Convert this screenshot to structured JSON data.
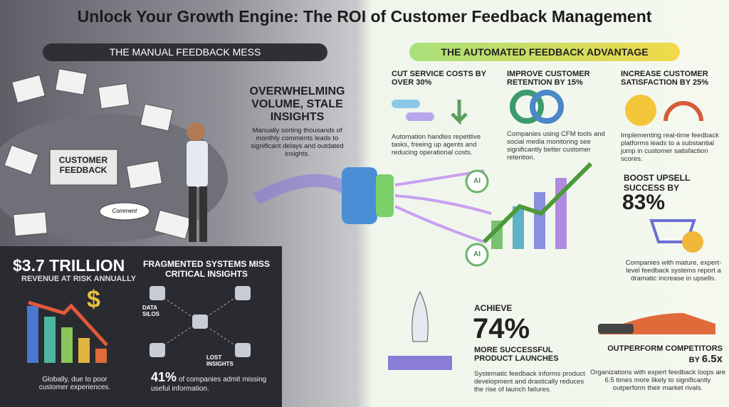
{
  "header": {
    "title": "Unlock Your Growth Engine: The ROI of Customer Feedback Management"
  },
  "left": {
    "banner": "THE MANUAL FEEDBACK MESS",
    "pile": {
      "sign": "CUSTOMER FEEDBACK",
      "bubble": "Comment"
    },
    "overwhelm": {
      "heading": "OVERWHELMING VOLUME, STALE INSIGHTS",
      "body": "Manually sorting thousands of monthly comments leads to significant delays and outdated insights."
    },
    "revenue": {
      "stat": "$3.7 TRILLION",
      "subtitle": "REVENUE AT RISK ANNUALLY",
      "symbol": "$",
      "body": "Globally, due to poor customer experiences."
    },
    "fragmented": {
      "heading": "FRAGMENTED SYSTEMS MISS CRITICAL INSIGHTS",
      "silos": "DATA SILOS",
      "lost": "LOST INSIGHTS",
      "stat": "41%",
      "body": "of companies admit missing useful information."
    }
  },
  "right": {
    "banner": "THE AUTOMATED FEEDBACK ADVANTAGE",
    "costs": {
      "heading": "CUT SERVICE COSTS BY OVER 30%",
      "body": "Automation handles repetitive tasks, freeing up agents and reducing operational costs."
    },
    "retention": {
      "heading": "IMPROVE CUSTOMER RETENTION BY 15%",
      "body": "Companies using CFM tools and social media monitoring see significantly better customer retention."
    },
    "satisfaction": {
      "heading": "INCREASE CUSTOMER SATISFACTION BY 25%",
      "body": "Implementing real-time feedback platforms leads to a substantial jump in customer satisfaction scores."
    },
    "ai": [
      "AI",
      "AI"
    ],
    "upsell": {
      "heading": "BOOST UPSELL SUCCESS BY",
      "stat": "83%",
      "body": "Companies with mature, expert-level feedback systems report a dramatic increase in upsells."
    },
    "launches": {
      "lead": "ACHIEVE",
      "stat": "74%",
      "heading": "MORE SUCCESSFUL PRODUCT LAUNCHES",
      "body": "Systematic feedback informs product development and drastically reduces the rise of launch failures."
    },
    "outperform": {
      "heading": "OUTPERFORM COMPETITORS BY",
      "stat": "6.5x",
      "body": "Organizations with expert feedback loops are 6.5 times more likely to significantly outperform their market rivals."
    }
  }
}
